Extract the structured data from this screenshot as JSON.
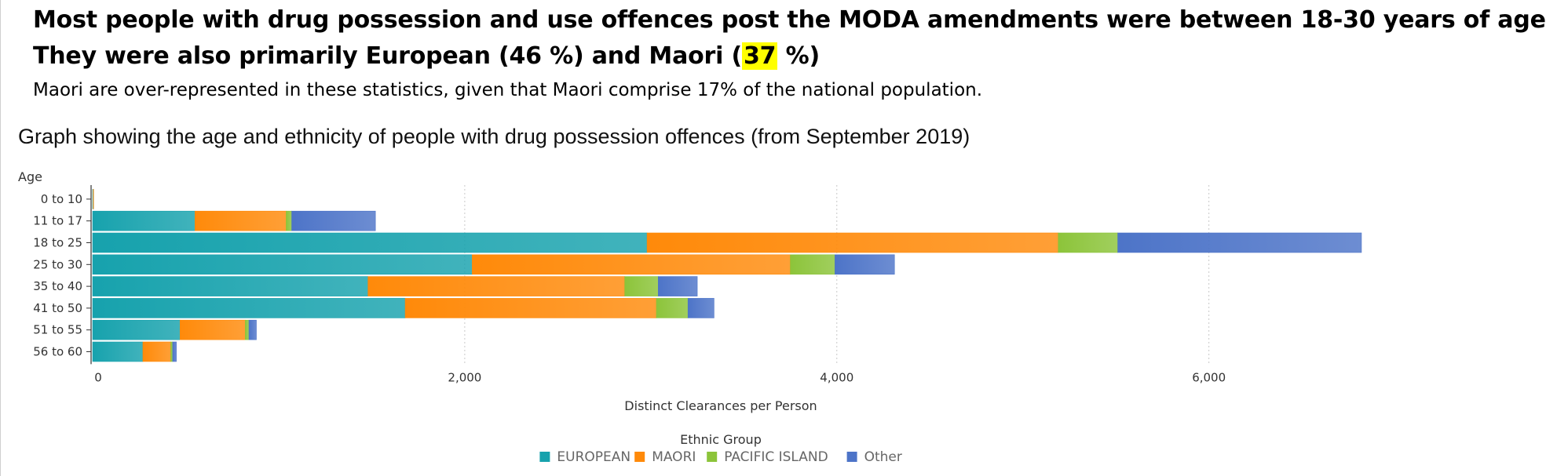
{
  "header": {
    "headline_1": "Most people with drug possession and use offences post the MODA amendments were between 18-30 years of age",
    "headline_2_pre": "They were also primarily European (46 %) and Maori (",
    "headline_2_highlight": "37",
    "headline_2_post": " %)",
    "subtext": "Maori are over-represented in these statistics, given that Maori comprise 17% of the national population.",
    "highlight_color": "#ffff00"
  },
  "chart_data": {
    "type": "bar",
    "orientation": "horizontal",
    "stacked": true,
    "title": "Graph showing the age and ethnicity of people with drug possession offences (from September 2019)",
    "ylabel": "Age",
    "xlabel": "Distinct Clearances per Person",
    "categories": [
      "0 to 10",
      "11 to 17",
      "18 to 25",
      "25 to 30",
      "35 to 40",
      "41 to 50",
      "51 to 55",
      "56 to 60"
    ],
    "series": [
      {
        "name": "EUROPEAN",
        "color": "#17a2ad",
        "values": [
          3,
          550,
          2980,
          2040,
          1480,
          1680,
          470,
          270
        ]
      },
      {
        "name": "MAORI",
        "color": "#ff8a0a",
        "values": [
          2,
          490,
          2210,
          1710,
          1380,
          1350,
          350,
          150
        ]
      },
      {
        "name": "PACIFIC ISLAND",
        "color": "#8cc43a",
        "values": [
          0,
          30,
          320,
          240,
          180,
          170,
          20,
          10
        ]
      },
      {
        "name": "Other",
        "color": "#4d74c8",
        "values": [
          0,
          450,
          1310,
          320,
          210,
          140,
          40,
          20
        ]
      }
    ],
    "xlim": [
      0,
      7200
    ],
    "xticks": [
      0,
      2000,
      4000,
      6000
    ],
    "xtick_labels": [
      "0",
      "2,000",
      "4,000",
      "6,000"
    ],
    "grid": "vertical dotted",
    "legend_title": "Ethnic Group",
    "legend_position": "bottom-center"
  }
}
